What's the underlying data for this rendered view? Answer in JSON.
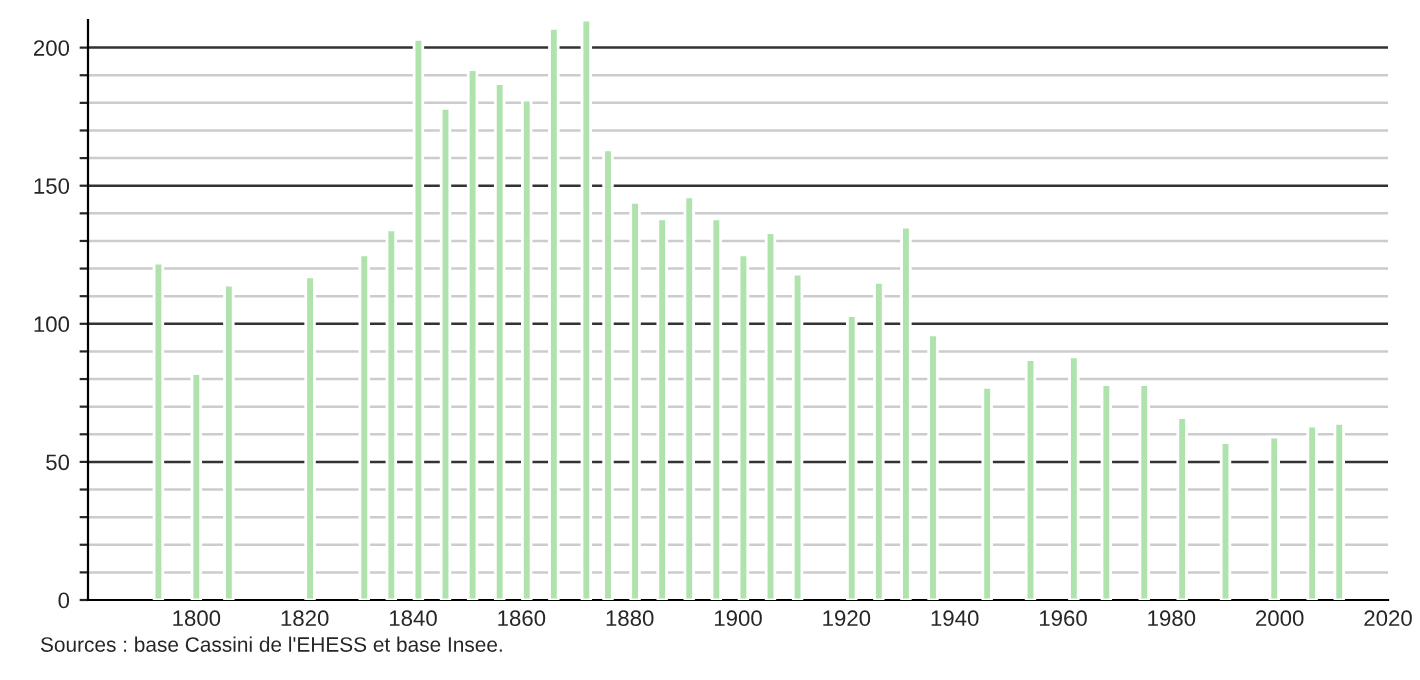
{
  "chart_data": {
    "type": "bar",
    "x": [
      1793,
      1800,
      1806,
      1821,
      1831,
      1836,
      1841,
      1846,
      1851,
      1856,
      1861,
      1866,
      1872,
      1876,
      1881,
      1886,
      1891,
      1896,
      1901,
      1906,
      1911,
      1921,
      1926,
      1931,
      1936,
      1946,
      1954,
      1962,
      1968,
      1975,
      1982,
      1990,
      1999,
      2006,
      2011
    ],
    "values": [
      122,
      82,
      114,
      117,
      125,
      134,
      203,
      178,
      192,
      187,
      181,
      207,
      210,
      163,
      144,
      138,
      146,
      138,
      125,
      133,
      118,
      103,
      115,
      135,
      96,
      77,
      87,
      88,
      78,
      78,
      66,
      57,
      59,
      63,
      64
    ],
    "color": "#aee3ad",
    "xlim": [
      1780,
      2020
    ],
    "xticks": [
      1800,
      1820,
      1840,
      1860,
      1880,
      1900,
      1920,
      1940,
      1960,
      1980,
      2000,
      2020
    ],
    "ylim": [
      0,
      210
    ],
    "yticks": [
      0,
      {
        "value": 10,
        "label": null
      },
      {
        "value": 20,
        "label": null
      },
      {
        "value": 30,
        "label": null
      },
      {
        "value": 40,
        "label": null
      },
      50,
      {
        "value": 60,
        "label": null
      },
      {
        "value": 70,
        "label": null
      },
      {
        "value": 80,
        "label": null
      },
      {
        "value": 90,
        "label": null
      },
      100,
      {
        "value": 110,
        "label": null
      },
      {
        "value": 120,
        "label": null
      },
      {
        "value": 130,
        "label": null
      },
      {
        "value": 140,
        "label": null
      },
      150,
      {
        "value": 160,
        "label": null
      },
      {
        "value": 170,
        "label": null
      },
      {
        "value": 180,
        "label": null
      },
      {
        "value": 190,
        "label": null
      },
      200
    ],
    "grid": "y",
    "annotations": [
      "Sources : base Cassini de l'EHESS et base Insee."
    ]
  }
}
